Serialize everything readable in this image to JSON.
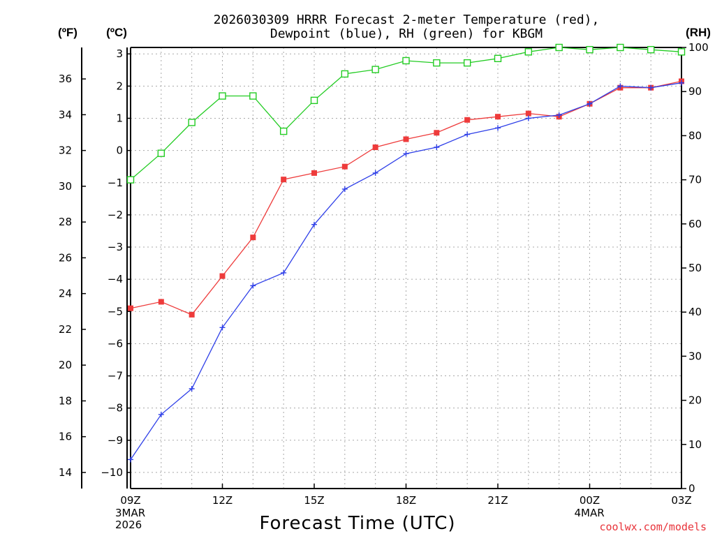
{
  "chart_data": {
    "type": "line",
    "title_line1": "2026030309 HRRR Forecast 2-meter Temperature (red),",
    "title_line2": "Dewpoint (blue), RH (green) for KBGM",
    "xlabel": "Forecast Time (UTC)",
    "credit": "coolwx.com/models",
    "unit_labels": {
      "fahrenheit": "(ºF)",
      "celsius": "(ºC)",
      "rh": "(RH)"
    },
    "hours": [
      0,
      1,
      2,
      3,
      4,
      5,
      6,
      7,
      8,
      9,
      10,
      11,
      12,
      13,
      14,
      15,
      16,
      17,
      18
    ],
    "x_ticks": [
      {
        "hour": 0,
        "label": "09Z",
        "sub1": "3MAR",
        "sub2": "2026"
      },
      {
        "hour": 3,
        "label": "12Z"
      },
      {
        "hour": 6,
        "label": "15Z"
      },
      {
        "hour": 9,
        "label": "18Z"
      },
      {
        "hour": 12,
        "label": "21Z"
      },
      {
        "hour": 15,
        "label": "00Z",
        "sub1": "4MAR"
      },
      {
        "hour": 18,
        "label": "03Z"
      }
    ],
    "xlim": [
      0,
      18
    ],
    "celsius_axis": {
      "ylim": [
        -10.5,
        3.2
      ],
      "ticks": [
        3,
        2,
        1,
        0,
        -1,
        -2,
        -3,
        -4,
        -5,
        -6,
        -7,
        -8,
        -9,
        -10
      ],
      "tick_labels": [
        "3",
        "2",
        "1",
        "0",
        "−1",
        "−2",
        "−3",
        "−4",
        "−5",
        "−6",
        "−7",
        "−8",
        "−9",
        "−10"
      ]
    },
    "fahrenheit_axis": {
      "ticks": [
        36,
        34,
        32,
        30,
        28,
        26,
        24,
        22,
        20,
        18,
        16,
        14
      ],
      "tick_labels": [
        "36",
        "34",
        "32",
        "30",
        "28",
        "26",
        "24",
        "22",
        "20",
        "18",
        "16",
        "14"
      ]
    },
    "rh_axis": {
      "ylim": [
        0,
        100
      ],
      "ticks": [
        100,
        90,
        80,
        70,
        60,
        50,
        40,
        30,
        20,
        10,
        0
      ],
      "tick_labels": [
        "100",
        "90",
        "80",
        "70",
        "60",
        "50",
        "40",
        "30",
        "20",
        "10",
        "0"
      ]
    },
    "series": [
      {
        "name": "Temperature",
        "color": "#ee3b3b",
        "marker": "filled-square",
        "axis": "celsius",
        "values": [
          -4.9,
          -4.7,
          -5.1,
          -3.9,
          -2.7,
          -0.9,
          -0.7,
          -0.5,
          0.1,
          0.35,
          0.55,
          0.95,
          1.05,
          1.15,
          1.05,
          1.45,
          1.95,
          1.95,
          2.15
        ]
      },
      {
        "name": "Dewpoint",
        "color": "#2e3fe8",
        "marker": "plus",
        "axis": "celsius",
        "values": [
          -9.6,
          -8.2,
          -7.4,
          -5.5,
          -4.2,
          -3.8,
          -2.3,
          -1.2,
          -0.7,
          -0.1,
          0.1,
          0.5,
          0.7,
          1.0,
          1.1,
          1.45,
          2.0,
          1.95,
          2.1
        ]
      },
      {
        "name": "RH",
        "color": "#22cc22",
        "marker": "open-square",
        "axis": "rh",
        "values": [
          70,
          76,
          83,
          89,
          89,
          81,
          88,
          94,
          95,
          97,
          96.5,
          96.5,
          97.5,
          99,
          100,
          99.5,
          100,
          99.5,
          99
        ]
      }
    ]
  }
}
